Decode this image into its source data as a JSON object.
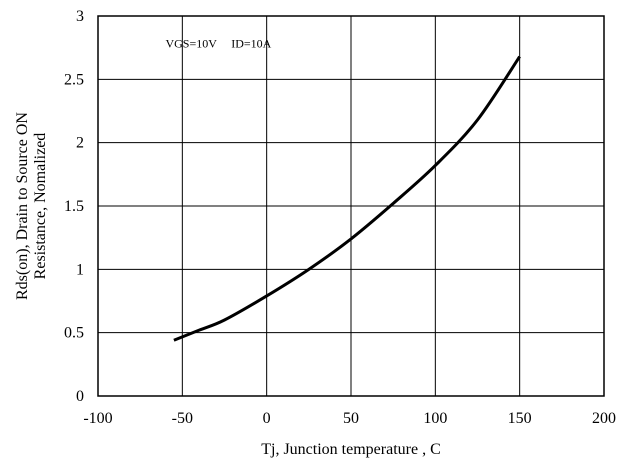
{
  "chart_data": {
    "type": "line",
    "xlabel": "Tj, Junction temperature , C",
    "ylabel_lines": [
      "Rds(on), Drain to Source ON",
      "Resistance, Nomalized"
    ],
    "annotations": [
      {
        "text": "VGS=10V",
        "x": -60,
        "y": 2.75
      },
      {
        "text": "ID=10A",
        "x": -21,
        "y": 2.75
      }
    ],
    "xlim": [
      -100,
      200
    ],
    "ylim": [
      0,
      3
    ],
    "x_ticks": [
      -100,
      -50,
      0,
      50,
      100,
      150,
      200
    ],
    "x_tick_labels": [
      "-100",
      "-50",
      "0",
      "50",
      "100",
      "150",
      "200"
    ],
    "y_ticks": [
      0,
      0.5,
      1,
      1.5,
      2,
      2.5,
      3
    ],
    "y_tick_labels": [
      "0",
      "0.5",
      "1",
      "1.5",
      "2",
      "2.5",
      "3"
    ],
    "grid": true,
    "series": [
      {
        "x": [
          -55,
          -40,
          -25,
          0,
          25,
          50,
          75,
          100,
          125,
          150
        ],
        "y": [
          0.44,
          0.52,
          0.6,
          0.79,
          1.0,
          1.24,
          1.52,
          1.82,
          2.18,
          2.68
        ]
      }
    ]
  },
  "colors": {
    "line": "#000000",
    "grid": "#000000",
    "background": "#ffffff"
  }
}
